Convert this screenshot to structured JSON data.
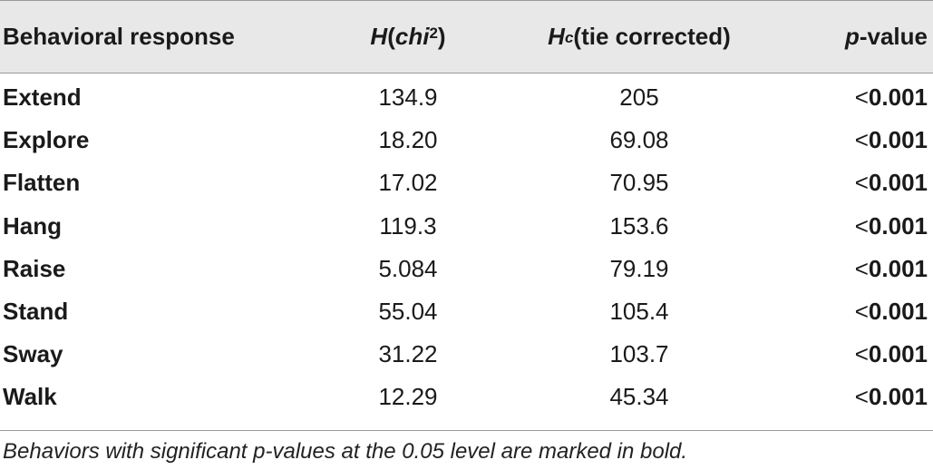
{
  "header": {
    "col1": "Behavioral response",
    "col2_var": "H",
    "col2_open": " (",
    "col2_it": "chi",
    "col2_sup": "2",
    "col2_close": ")",
    "col3_var": "H",
    "col3_sub": "c",
    "col3_rest": " (tie corrected)",
    "col4_it": "p",
    "col4_rest": "-value"
  },
  "rows": [
    {
      "behavior": "Extend",
      "h": "134.9",
      "hc": "205",
      "p_lt": "<",
      "p": "0.001"
    },
    {
      "behavior": "Explore",
      "h": "18.20",
      "hc": "69.08",
      "p_lt": "<",
      "p": "0.001"
    },
    {
      "behavior": "Flatten",
      "h": "17.02",
      "hc": "70.95",
      "p_lt": "<",
      "p": "0.001"
    },
    {
      "behavior": "Hang",
      "h": "119.3",
      "hc": "153.6",
      "p_lt": "<",
      "p": "0.001"
    },
    {
      "behavior": "Raise",
      "h": "5.084",
      "hc": "79.19",
      "p_lt": "<",
      "p": "0.001"
    },
    {
      "behavior": "Stand",
      "h": "55.04",
      "hc": "105.4",
      "p_lt": "<",
      "p": "0.001"
    },
    {
      "behavior": "Sway",
      "h": "31.22",
      "hc": "103.7",
      "p_lt": "<",
      "p": "0.001"
    },
    {
      "behavior": "Walk",
      "h": "12.29",
      "hc": "45.34",
      "p_lt": "<",
      "p": "0.001"
    }
  ],
  "footnote": "Behaviors with significant p-values at the 0.05 level are marked in bold.",
  "colors": {
    "header_background": "#e8e8e8",
    "rule": "#9a9a9a",
    "text": "#1a1a1a"
  }
}
